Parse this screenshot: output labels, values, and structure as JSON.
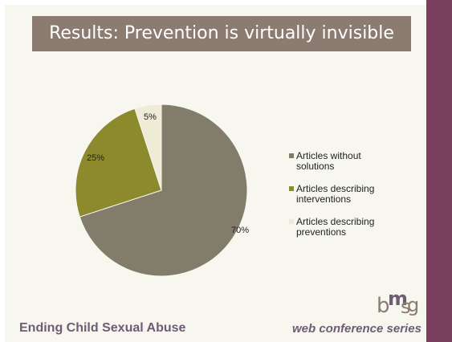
{
  "slide": {
    "title": "Results: Prevention is virtually invisible",
    "footer_left": "Ending Child Sexual Abuse",
    "footer_right": "web conference series",
    "logo": {
      "b": "b",
      "m": "m",
      "s": "s",
      "g": "g"
    }
  },
  "colors": {
    "right_band": "#7a3e5e",
    "title_bar": "#8c7b70",
    "footer_text": "#6e5c74"
  },
  "chart_data": {
    "type": "pie",
    "title": "",
    "slices": [
      {
        "label": "Articles without solutions",
        "legend_lines": [
          "Articles without",
          "solutions"
        ],
        "value": 70,
        "pct_label": "70%",
        "color": "#827c6a"
      },
      {
        "label": "Articles describing interventions",
        "legend_lines": [
          "Articles describing",
          "interventions"
        ],
        "value": 25,
        "pct_label": "25%",
        "color": "#8d8a2e"
      },
      {
        "label": "Articles describing preventions",
        "legend_lines": [
          "Articles describing",
          "preventions"
        ],
        "value": 5,
        "pct_label": "5%",
        "color": "#efecd6"
      }
    ],
    "legend_position": "right",
    "start_angle_deg": 0,
    "direction": "clockwise"
  }
}
